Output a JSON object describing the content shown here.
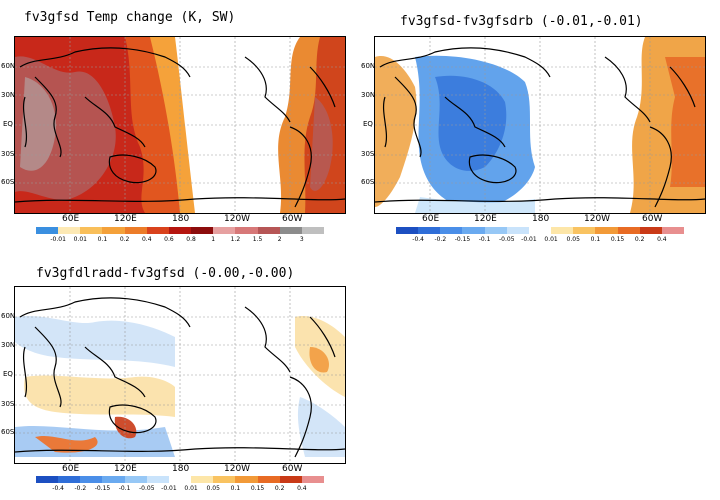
{
  "panels": [
    {
      "title": "fv3gfsd  Temp change (K, SW)",
      "lat_labels": [
        "60N",
        "30N",
        "EQ",
        "30S",
        "60S"
      ],
      "lon_labels": [
        "60E",
        "120E",
        "180",
        "120W",
        "60W"
      ],
      "colorbar": {
        "labels": [
          "-0.01",
          "0.01",
          "0.1",
          "0.2",
          "0.4",
          "0.6",
          "0.8",
          "1",
          "1.2",
          "1.5",
          "2",
          "3"
        ],
        "colors": [
          "#3a8fe0",
          "#fde9b4",
          "#f9bf5a",
          "#f4a13a",
          "#ec7c29",
          "#d9421c",
          "#b5150f",
          "#8c0c0c",
          "#e6a0a0",
          "#d77878",
          "#b65656",
          "#8c8c8c",
          "#bfbfbf"
        ]
      }
    },
    {
      "title": "fv3gfsd-fv3gfsdrb (-0.01,-0.01)",
      "lat_labels": [
        "60N",
        "30N",
        "EQ",
        "30S",
        "60S"
      ],
      "lon_labels": [
        "60E",
        "120E",
        "180",
        "120W",
        "60W"
      ],
      "colorbar": {
        "labels": [
          "-0.4",
          "-0.2",
          "-0.15",
          "-0.1",
          "-0.05",
          "-0.01",
          "0.01",
          "0.05",
          "0.1",
          "0.15",
          "0.2",
          "0.4"
        ],
        "colors": [
          "#1c4fc1",
          "#2f6ed8",
          "#4a8ee8",
          "#6aaaf0",
          "#97c8f6",
          "#c9e3fb",
          "#ffffff",
          "#fde6a8",
          "#f9c361",
          "#f29a38",
          "#e86b24",
          "#c93a17",
          "#e88f8f"
        ]
      }
    },
    {
      "title": "fv3gfdlradd-fv3gfsd (-0.00,-0.00)",
      "lat_labels": [
        "60N",
        "30N",
        "EQ",
        "30S",
        "60S"
      ],
      "lon_labels": [
        "60E",
        "120E",
        "180",
        "120W",
        "60W"
      ],
      "colorbar": {
        "labels": [
          "-0.4",
          "-0.2",
          "-0.15",
          "-0.1",
          "-0.05",
          "-0.01",
          "0.01",
          "0.05",
          "0.1",
          "0.15",
          "0.2",
          "0.4"
        ],
        "colors": [
          "#1c4fc1",
          "#2f6ed8",
          "#4a8ee8",
          "#6aaaf0",
          "#97c8f6",
          "#c9e3fb",
          "#ffffff",
          "#fde6a8",
          "#f9c361",
          "#f29a38",
          "#e86b24",
          "#c93a17",
          "#e88f8f"
        ]
      }
    }
  ]
}
